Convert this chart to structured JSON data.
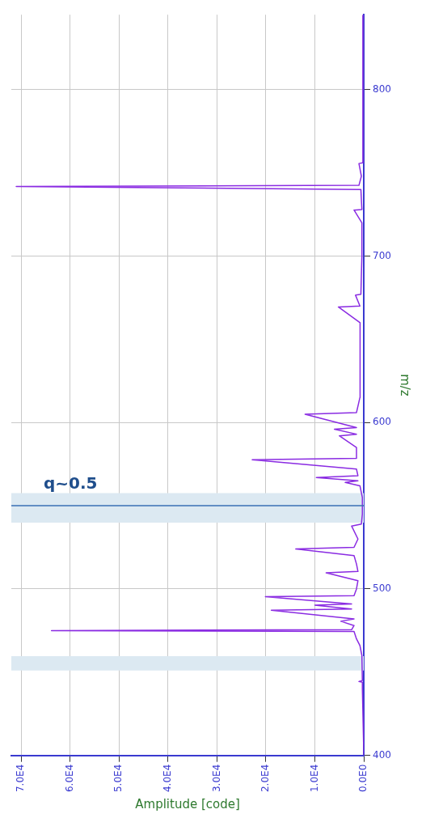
{
  "chart_data": {
    "type": "line",
    "orientation": "horizontal",
    "xlabel": "Amplitude [code]",
    "ylabel": "m/z",
    "x": [
      400,
      440,
      444,
      444.4,
      445,
      460,
      466,
      470,
      474.5,
      475,
      475.5,
      478,
      480.6,
      482,
      487.2,
      488,
      490.3,
      491,
      495.4,
      496,
      500,
      505,
      509.7,
      510.5,
      515,
      520,
      524,
      525,
      530,
      537.8,
      539,
      545,
      555,
      562,
      564,
      565,
      567,
      568,
      572,
      577.6,
      578.5,
      585,
      592,
      593,
      596,
      597,
      605,
      606,
      615,
      630,
      645,
      660,
      669.4,
      670,
      676.5,
      677,
      700,
      720,
      727.6,
      728,
      740,
      741.8,
      742.5,
      748,
      755.6,
      756,
      800,
      845
    ],
    "series": [
      {
        "color": "#8a2be2",
        "values": [
          0,
          300,
          300,
          1000,
          300,
          400,
          800,
          1500,
          2000,
          63800,
          2500,
          2000,
          4700,
          2000,
          18900,
          2500,
          10000,
          2500,
          20100,
          2000,
          1500,
          1200,
          7700,
          1200,
          1500,
          2000,
          13900,
          2000,
          1200,
          2500,
          500,
          300,
          300,
          800,
          3800,
          1200,
          9700,
          1200,
          1500,
          22800,
          1500,
          1500,
          5000,
          1500,
          6000,
          1500,
          12000,
          1500,
          800,
          800,
          700,
          800,
          5200,
          800,
          1700,
          600,
          400,
          400,
          2000,
          400,
          600,
          71000,
          1000,
          500,
          1000,
          300,
          200,
          200
        ]
      }
    ],
    "xlim": [
      72000,
      0
    ],
    "xticks": [
      {
        "value": 70000,
        "label": "7.0E4"
      },
      {
        "value": 60000,
        "label": "6.0E4"
      },
      {
        "value": 50000,
        "label": "5.0E4"
      },
      {
        "value": 40000,
        "label": "4.0E4"
      },
      {
        "value": 30000,
        "label": "3.0E4"
      },
      {
        "value": 20000,
        "label": "2.0E4"
      },
      {
        "value": 10000,
        "label": "1.0E4"
      },
      {
        "value": 0,
        "label": "0.0E0"
      }
    ],
    "ylim": [
      400,
      845
    ],
    "yticks": [
      400,
      500,
      600,
      700,
      800
    ],
    "grid": true,
    "bands": [
      {
        "axis": "y",
        "from": 451,
        "to": 459.7,
        "color": "#dce9f2"
      },
      {
        "axis": "y",
        "from": 539.8,
        "to": 557.6,
        "color": "#dce9f2"
      }
    ],
    "ref_lines": [
      {
        "axis": "y",
        "value": 550,
        "label": "q~0.5",
        "color": "#3a6fb5"
      }
    ]
  }
}
